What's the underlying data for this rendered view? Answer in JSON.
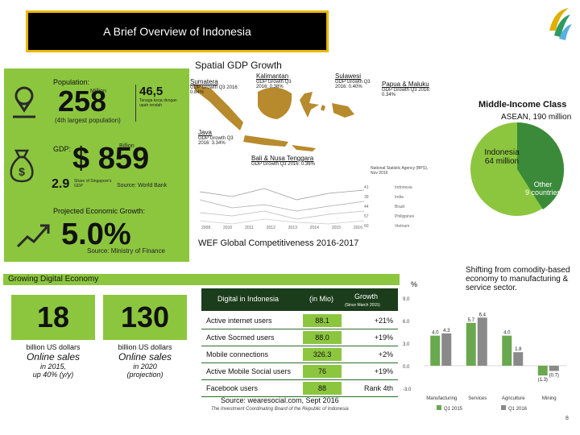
{
  "header": {
    "title": "A Brief Overview of Indonesia"
  },
  "spatial": {
    "title": "Spatial GDP Growth",
    "population_label": "Population:",
    "population_value": "258",
    "population_unit": "Million",
    "population_rank": "(4th largest population)",
    "side_value": "46,5",
    "side_note": "Tenaga kerja dengan upah rendah",
    "gdp_label": "GDP:",
    "gdp_value": "$ 859",
    "gdp_unit": "Billion",
    "gdp_growth": "2.9",
    "gdp_growth_note": "Share of Singapore's GDP",
    "gdp_source": "Source: World Bank",
    "proj_label": "Projected Economic Growth:",
    "proj_value": "5.0%",
    "proj_source": "Source: Ministry of Finance",
    "regions": [
      {
        "name": "Sumatera",
        "text": "GDP Growth Q3 2016: 0.84%"
      },
      {
        "name": "Kalimantan",
        "text": "GDP Growth Q3 2016: 0.38%"
      },
      {
        "name": "Sulawesi",
        "text": "GDP Growth Q3 2016: 0.40%"
      },
      {
        "name": "Papua & Maluku",
        "text": "GDP Growth Q3 2016: 0.34%"
      },
      {
        "name": "Java",
        "text": "GDP Growth Q3 2016: 3.34%"
      },
      {
        "name": "Bali & Nusa Tenggara",
        "text": "GDP Growth Q3 2016: 0.36%"
      }
    ],
    "source_bps": "National Statistic Agency (BPS), Nov 2016"
  },
  "wef": {
    "title": "WEF Global Competitiveness 2016-2017",
    "ranks": [
      "41",
      "39",
      "44",
      "57",
      "60"
    ],
    "countries": [
      "Indonesia",
      "India",
      "Brazil",
      "Philippines",
      "Vietnam"
    ],
    "years": [
      "2008",
      "2010",
      "2011",
      "2012",
      "2013",
      "2014",
      "2015",
      "2016"
    ]
  },
  "income": {
    "title": "Middle-Income Class",
    "subtitle": "ASEAN, 190 million",
    "indonesia": "Indonesia",
    "indonesia_val": "64 million",
    "other": "Other",
    "other_val": "9 countries"
  },
  "digital": {
    "section_title": "Growing Digital Economy",
    "stat1_value": "18",
    "stat1_unit": "billion US dollars",
    "stat1_label": "Online sales",
    "stat1_note1": "in 2015,",
    "stat1_note2": "up 40% (y/y)",
    "stat2_value": "130",
    "stat2_unit": "billion US dollars",
    "stat2_label": "Online sales",
    "stat2_note1": "in 2020",
    "stat2_note2": "(projection)",
    "table_title": "Digital in Indonesia",
    "col_mio": "(in Mio)",
    "col_growth": "Growth",
    "col_growth_note": "(Since March 2015)",
    "rows": [
      {
        "label": "Active internet users",
        "value": "88.1",
        "growth": "+21%"
      },
      {
        "label": "Active Socmed users",
        "value": "88.0",
        "growth": "+19%"
      },
      {
        "label": "Mobile connections",
        "value": "326.3",
        "growth": "+2%"
      },
      {
        "label": "Active Mobile Social users",
        "value": "76",
        "growth": "+19%"
      },
      {
        "label": "Facebook users",
        "value": "88",
        "growth": "Rank 4th"
      }
    ],
    "source": "Source: wearesocial.com, Sept 2016",
    "footer": "The Investment Coordinating Board of the Republic of Indonesia"
  },
  "shift": {
    "text": "Shifting from comodity-based economy to manufacturing & service sector.",
    "unit": "%",
    "page": "8"
  },
  "chart_data": {
    "type": "bar",
    "categories": [
      "Manufacturing",
      "Services",
      "Agriculture",
      "Mining"
    ],
    "series": [
      {
        "name": "Q1 2015",
        "values": [
          4.0,
          5.7,
          4.0,
          -1.3
        ]
      },
      {
        "name": "Q1 2016",
        "values": [
          4.3,
          6.4,
          1.8,
          -0.7
        ]
      }
    ],
    "ylim": [
      -3.0,
      9.0
    ],
    "yticks": [
      "9.0",
      "6.0",
      "3.0",
      "0.0",
      "-3.0"
    ],
    "labels": [
      [
        "4.0",
        "4.3"
      ],
      [
        "5.7",
        "6.4"
      ],
      [
        "4.0",
        "1.8"
      ],
      [
        "(1.3)",
        "(0.7)"
      ]
    ],
    "colors": {
      "s1": "#6aa84f",
      "s2": "#8a8a8a"
    }
  }
}
